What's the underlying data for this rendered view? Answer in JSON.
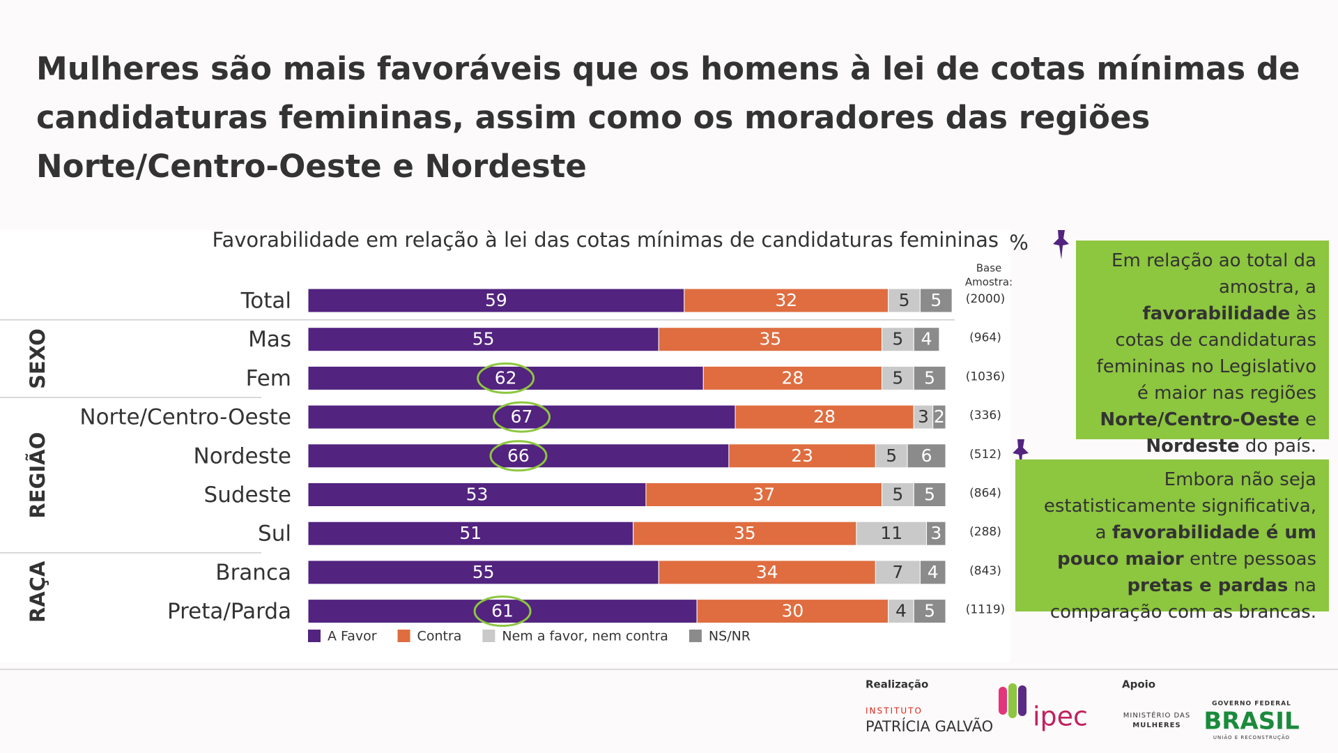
{
  "chart_data": {
    "type": "bar",
    "stacked": true,
    "orientation": "horizontal",
    "title": [
      "Mulheres são mais favoráveis que os homens à lei de cotas mínimas de",
      "candidaturas femininas, assim como os moradores das regiões",
      "Norte/Centro-Oeste e Nordeste"
    ],
    "subtitle": "Favorabilidade em relação à lei das cotas mínimas de candidaturas femininas",
    "unit": "%",
    "base_header": [
      "Base",
      "Amostra:"
    ],
    "categories": [
      "Total",
      "Mas",
      "Fem",
      "Norte/Centro-Oeste",
      "Nordeste",
      "Sudeste",
      "Sul",
      "Branca",
      "Preta/Parda"
    ],
    "base_labels": [
      "(2000)",
      "(964)",
      "(1036)",
      "(336)",
      "(512)",
      "(864)",
      "(288)",
      "(843)",
      "(1119)"
    ],
    "groups": [
      {
        "label": "SEXO",
        "rows": [
          1,
          2
        ]
      },
      {
        "label": "REGIÃO",
        "rows": [
          3,
          6
        ]
      },
      {
        "label": "RAÇA",
        "rows": [
          7,
          8
        ]
      }
    ],
    "circled": [
      2,
      3,
      4,
      8
    ],
    "series": [
      {
        "name": "A Favor",
        "color": "#52237f",
        "label_color": "#ffffff",
        "values": [
          59,
          55,
          62,
          67,
          66,
          53,
          51,
          55,
          61
        ]
      },
      {
        "name": "Contra",
        "color": "#df6d40",
        "label_color": "#ffffff",
        "values": [
          32,
          35,
          28,
          28,
          23,
          37,
          35,
          34,
          30
        ]
      },
      {
        "name": "Nem a favor, nem contra",
        "color": "#c9c9c9",
        "label_color": "#333333",
        "values": [
          5,
          5,
          5,
          3,
          5,
          5,
          11,
          7,
          4
        ]
      },
      {
        "name": "NS/NR",
        "color": "#8b8b8b",
        "label_color": "#ffffff",
        "values": [
          5,
          4,
          5,
          2,
          6,
          5,
          3,
          4,
          5
        ]
      }
    ]
  },
  "notes": [
    [
      {
        "text": "Em relação ao total da amostra, a ",
        "bold": false
      },
      {
        "text": "favorabilidade",
        "bold": true
      },
      {
        "text": " às cotas de candidaturas femininas no Legislativo é maior nas regiões ",
        "bold": false
      },
      {
        "text": "Norte/Centro-Oeste",
        "bold": true
      },
      {
        "text": " e ",
        "bold": false
      },
      {
        "text": "Nordeste",
        "bold": true
      },
      {
        "text": " do país.",
        "bold": false
      }
    ],
    [
      {
        "text": "Embora não seja estatisticamente significativa, a ",
        "bold": false
      },
      {
        "text": "favorabilidade é um pouco maior",
        "bold": true
      },
      {
        "text": " entre pessoas ",
        "bold": false
      },
      {
        "text": "pretas e pardas",
        "bold": true
      },
      {
        "text": " na comparação com as brancas.",
        "bold": false
      }
    ]
  ],
  "footer": {
    "realizacao": "Realização",
    "ipg_small": "INSTITUTO",
    "ipg_big": "PATRÍCIA GALVÃO",
    "ipec": "ipec",
    "apoio": "Apoio",
    "ministerio": [
      "MINISTÉRIO DAS",
      "MULHERES"
    ],
    "governo": "GOVERNO FEDERAL",
    "brasil": "BRASIL",
    "uniao": "UNIÃO E RECONSTRUÇÃO"
  }
}
